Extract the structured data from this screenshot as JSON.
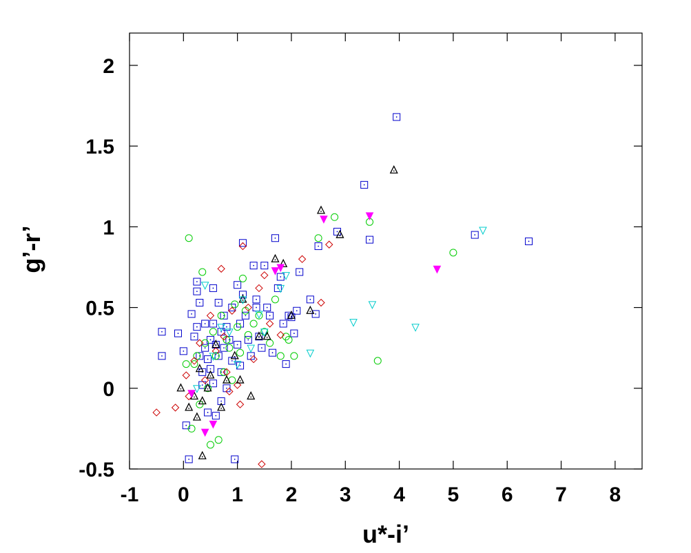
{
  "chart_data": {
    "type": "scatter",
    "title": "",
    "xlabel": "u*-i’",
    "ylabel": "g’-r’",
    "xlim": [
      -1,
      8.5
    ],
    "ylim": [
      -0.5,
      2.2
    ],
    "x_ticks": [
      "-1",
      "0",
      "1",
      "2",
      "3",
      "4",
      "5",
      "6",
      "7",
      "8"
    ],
    "y_ticks": [
      "-0.5",
      "0",
      "0.5",
      "1",
      "1.5",
      "2"
    ],
    "x_tick_values": [
      -1,
      0,
      1,
      2,
      3,
      4,
      5,
      6,
      7,
      8
    ],
    "y_tick_values": [
      -0.5,
      0,
      0.5,
      1,
      1.5,
      2
    ],
    "grid": false,
    "legend": "none",
    "series": [
      {
        "marker": "square-dot",
        "color": "#0000cc",
        "points": [
          [
            -0.4,
            0.35
          ],
          [
            -0.4,
            0.2
          ],
          [
            -0.1,
            0.34
          ],
          [
            0.0,
            0.23
          ],
          [
            0.05,
            -0.23
          ],
          [
            0.1,
            -0.44
          ],
          [
            0.15,
            0.46
          ],
          [
            0.2,
            0.32
          ],
          [
            0.25,
            0.66
          ],
          [
            0.25,
            0.6
          ],
          [
            0.25,
            0.38
          ],
          [
            0.3,
            0.53
          ],
          [
            0.3,
            0.2
          ],
          [
            0.35,
            0.1
          ],
          [
            0.35,
            0.02
          ],
          [
            0.4,
            0.4
          ],
          [
            0.4,
            0.25
          ],
          [
            0.45,
            0.18
          ],
          [
            0.45,
            -0.15
          ],
          [
            0.5,
            0.3
          ],
          [
            0.5,
            0.12
          ],
          [
            0.55,
            0.62
          ],
          [
            0.55,
            0.4
          ],
          [
            0.55,
            0.03
          ],
          [
            0.6,
            0.27
          ],
          [
            0.6,
            -0.17
          ],
          [
            0.65,
            0.53
          ],
          [
            0.65,
            0.2
          ],
          [
            0.7,
            0.35
          ],
          [
            0.7,
            0.1
          ],
          [
            0.7,
            -0.08
          ],
          [
            0.75,
            0.45
          ],
          [
            0.75,
            0.25
          ],
          [
            0.8,
            0.0
          ],
          [
            0.8,
            0.38
          ],
          [
            0.85,
            0.3
          ],
          [
            0.9,
            0.5
          ],
          [
            0.9,
            0.17
          ],
          [
            0.95,
            -0.44
          ],
          [
            1.0,
            0.64
          ],
          [
            1.0,
            0.27
          ],
          [
            1.05,
            0.4
          ],
          [
            1.05,
            0.14
          ],
          [
            1.1,
            0.9
          ],
          [
            1.1,
            0.58
          ],
          [
            1.15,
            0.45
          ],
          [
            1.2,
            0.3
          ],
          [
            1.25,
            0.2
          ],
          [
            1.3,
            0.76
          ],
          [
            1.35,
            0.55
          ],
          [
            1.35,
            0.5
          ],
          [
            1.4,
            0.32
          ],
          [
            1.45,
            0.25
          ],
          [
            1.5,
            0.76
          ],
          [
            1.55,
            0.5
          ],
          [
            1.6,
            0.45
          ],
          [
            1.65,
            0.22
          ],
          [
            1.7,
            0.93
          ],
          [
            1.75,
            0.62
          ],
          [
            1.8,
            0.69
          ],
          [
            1.85,
            0.4
          ],
          [
            1.9,
            0.15
          ],
          [
            1.95,
            0.45
          ],
          [
            2.0,
            0.44
          ],
          [
            2.05,
            0.34
          ],
          [
            2.1,
            0.48
          ],
          [
            2.15,
            0.72
          ],
          [
            2.35,
            0.55
          ],
          [
            2.45,
            0.46
          ],
          [
            2.5,
            0.88
          ],
          [
            2.85,
            0.97
          ],
          [
            3.35,
            1.26
          ],
          [
            3.45,
            0.92
          ],
          [
            3.95,
            1.68
          ],
          [
            5.4,
            0.95
          ],
          [
            6.4,
            0.91
          ]
        ]
      },
      {
        "marker": "circle",
        "color": "#00cc00",
        "points": [
          [
            0.05,
            0.15
          ],
          [
            0.1,
            0.93
          ],
          [
            0.15,
            -0.25
          ],
          [
            0.2,
            0.15
          ],
          [
            0.25,
            0.2
          ],
          [
            0.3,
            -0.1
          ],
          [
            0.35,
            0.72
          ],
          [
            0.4,
            0.28
          ],
          [
            0.45,
            0.0
          ],
          [
            0.5,
            -0.35
          ],
          [
            0.55,
            0.35
          ],
          [
            0.6,
            0.2
          ],
          [
            0.65,
            -0.32
          ],
          [
            0.7,
            0.45
          ],
          [
            0.75,
            0.1
          ],
          [
            0.8,
            0.3
          ],
          [
            0.85,
            0.25
          ],
          [
            0.9,
            0.05
          ],
          [
            0.95,
            0.52
          ],
          [
            1.0,
            0.38
          ],
          [
            1.05,
            0.22
          ],
          [
            1.1,
            0.68
          ],
          [
            1.15,
            0.48
          ],
          [
            1.2,
            0.33
          ],
          [
            1.3,
            0.4
          ],
          [
            1.4,
            0.45
          ],
          [
            1.5,
            0.35
          ],
          [
            1.6,
            0.28
          ],
          [
            1.7,
            0.55
          ],
          [
            1.8,
            0.2
          ],
          [
            1.9,
            0.32
          ],
          [
            1.95,
            0.3
          ],
          [
            2.05,
            0.2
          ],
          [
            2.5,
            0.93
          ],
          [
            2.8,
            1.06
          ],
          [
            3.45,
            1.03
          ],
          [
            3.6,
            0.17
          ],
          [
            5.0,
            0.84
          ]
        ]
      },
      {
        "marker": "diamond",
        "color": "#cc0000",
        "points": [
          [
            -0.5,
            -0.15
          ],
          [
            -0.15,
            -0.12
          ],
          [
            0.05,
            0.08
          ],
          [
            0.1,
            -0.05
          ],
          [
            0.2,
            0.17
          ],
          [
            0.3,
            0.28
          ],
          [
            0.4,
            0.05
          ],
          [
            0.5,
            0.45
          ],
          [
            0.6,
            0.23
          ],
          [
            0.7,
            0.74
          ],
          [
            0.75,
            0.32
          ],
          [
            0.8,
            0.1
          ],
          [
            0.85,
            -0.02
          ],
          [
            0.9,
            0.48
          ],
          [
            1.0,
            0.02
          ],
          [
            1.05,
            -0.1
          ],
          [
            1.1,
            0.88
          ],
          [
            1.2,
            0.5
          ],
          [
            1.3,
            0.18
          ],
          [
            1.4,
            0.62
          ],
          [
            1.45,
            -0.47
          ],
          [
            1.5,
            0.7
          ],
          [
            1.6,
            0.4
          ],
          [
            1.8,
            0.33
          ],
          [
            2.2,
            0.8
          ],
          [
            2.55,
            0.53
          ],
          [
            2.7,
            0.89
          ]
        ]
      },
      {
        "marker": "triangle-up-dot",
        "color": "#000000",
        "points": [
          [
            -0.05,
            0.0
          ],
          [
            0.1,
            -0.12
          ],
          [
            0.2,
            -0.05
          ],
          [
            0.25,
            -0.18
          ],
          [
            0.3,
            0.12
          ],
          [
            0.35,
            -0.08
          ],
          [
            0.35,
            -0.42
          ],
          [
            0.45,
            0.0
          ],
          [
            0.5,
            0.08
          ],
          [
            0.6,
            0.27
          ],
          [
            0.7,
            -0.12
          ],
          [
            0.8,
            0.05
          ],
          [
            0.95,
            0.2
          ],
          [
            1.05,
            0.05
          ],
          [
            1.1,
            0.55
          ],
          [
            1.25,
            -0.05
          ],
          [
            1.4,
            0.32
          ],
          [
            1.55,
            0.32
          ],
          [
            1.7,
            0.8
          ],
          [
            1.85,
            0.77
          ],
          [
            2.0,
            0.45
          ],
          [
            2.35,
            0.48
          ],
          [
            2.55,
            1.1
          ],
          [
            2.9,
            0.95
          ],
          [
            3.9,
            1.35
          ]
        ]
      },
      {
        "marker": "triangle-down",
        "color": "#00cccc",
        "points": [
          [
            0.25,
            0.0
          ],
          [
            0.4,
            0.64
          ],
          [
            0.55,
            0.2
          ],
          [
            0.7,
            0.38
          ],
          [
            0.85,
            0.35
          ],
          [
            1.0,
            0.15
          ],
          [
            1.1,
            0.55
          ],
          [
            1.25,
            0.25
          ],
          [
            1.4,
            0.46
          ],
          [
            1.5,
            0.35
          ],
          [
            1.8,
            0.62
          ],
          [
            1.9,
            0.7
          ],
          [
            2.35,
            0.22
          ],
          [
            3.15,
            0.41
          ],
          [
            3.5,
            0.52
          ],
          [
            4.3,
            0.38
          ],
          [
            5.55,
            0.98
          ]
        ]
      },
      {
        "marker": "triangle-down-filled",
        "color": "#ff00ff",
        "points": [
          [
            0.15,
            -0.03
          ],
          [
            0.4,
            -0.27
          ],
          [
            0.55,
            -0.22
          ],
          [
            1.7,
            0.73
          ],
          [
            1.8,
            0.75
          ],
          [
            2.6,
            1.05
          ],
          [
            3.45,
            1.07
          ],
          [
            4.7,
            0.74
          ]
        ]
      }
    ]
  }
}
